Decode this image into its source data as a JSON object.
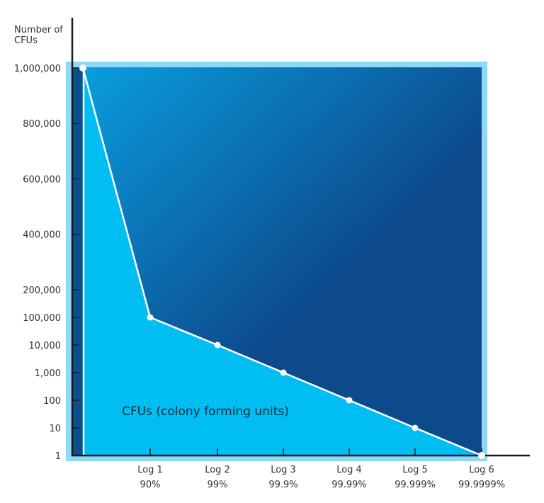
{
  "chart_data": {
    "type": "area",
    "ylabel": "Number of CFUs",
    "y_scale": "piecewise (linear 100,000–1,000,000; log 1–100,000)",
    "y_ticks": [
      "1,000,000",
      "800,000",
      "600,000",
      "400,000",
      "200,000",
      "100,000",
      "10,000",
      "1,000",
      "100",
      "10",
      "1"
    ],
    "y_tick_values": [
      1000000,
      800000,
      600000,
      400000,
      200000,
      100000,
      10000,
      1000,
      100,
      10,
      1
    ],
    "x_categories": [
      {
        "log": "",
        "pct": ""
      },
      {
        "log": "Log 1",
        "pct": "90%"
      },
      {
        "log": "Log 2",
        "pct": "99%"
      },
      {
        "log": "Log 3",
        "pct": "99.9%"
      },
      {
        "log": "Log 4",
        "pct": "99.99%"
      },
      {
        "log": "Log 5",
        "pct": "99.999%"
      },
      {
        "log": "Log 6",
        "pct": "99.9999%"
      }
    ],
    "series": [
      {
        "name": "CFUs (colony forming units)",
        "values": [
          1000000,
          100000,
          10000,
          1000,
          100,
          10,
          1
        ]
      }
    ],
    "annotation": "CFUs (colony forming units)",
    "colors": {
      "fill": "#00bdf2",
      "background_top": "#0a9fe0",
      "background_bottom": "#0c4a8c",
      "border": "#8fd9f6",
      "line": "#ffffff"
    }
  }
}
